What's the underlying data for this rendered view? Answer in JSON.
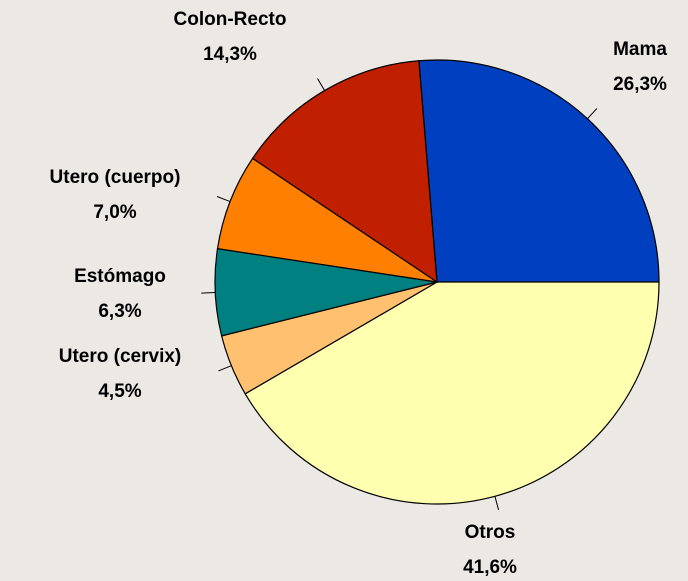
{
  "chart_data": {
    "type": "pie",
    "categories": [
      "Mama",
      "Otros",
      "Utero (cervix)",
      "Estómago",
      "Utero (cuerpo)",
      "Colon-Recto"
    ],
    "values": [
      26.3,
      41.6,
      4.5,
      6.3,
      7.0,
      14.3
    ],
    "value_labels": [
      "26,3%",
      "41,6%",
      "4,5%",
      "6,3%",
      "7,0%",
      "14,3%"
    ],
    "colors": [
      "#0040c0",
      "#ffffb0",
      "#ffc070",
      "#008080",
      "#ff8000",
      "#c02000"
    ]
  }
}
